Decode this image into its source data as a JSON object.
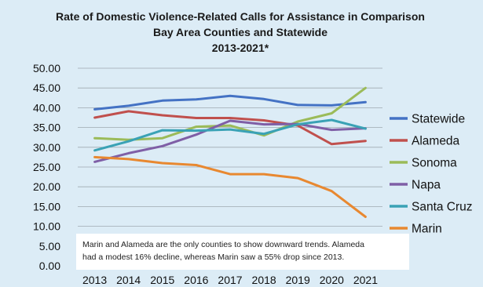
{
  "chart_data": {
    "type": "line",
    "title_lines": [
      "Rate of Domestic Violence-Related Calls for Assistance in Comparison",
      "Bay Area Counties and Statewide",
      "2013-2021*"
    ],
    "x": [
      "2013",
      "2014",
      "2015",
      "2016",
      "2017",
      "2018",
      "2019",
      "2020",
      "2021"
    ],
    "ylim": [
      0,
      50
    ],
    "y_ticks": [
      "0.00",
      "5.00",
      "10.00",
      "15.00",
      "20.00",
      "25.00",
      "30.00",
      "35.00",
      "40.00",
      "45.00",
      "50.00"
    ],
    "grid": true,
    "legend_position": "right",
    "series": [
      {
        "name": "Statewide",
        "color": "#4472c4",
        "values": [
          39.6,
          40.5,
          41.8,
          42.1,
          43.0,
          42.2,
          40.7,
          40.6,
          41.4
        ]
      },
      {
        "name": "Alameda",
        "color": "#c0504d",
        "values": [
          37.5,
          39.1,
          38.1,
          37.4,
          37.4,
          36.8,
          35.5,
          30.8,
          31.6
        ]
      },
      {
        "name": "Sonoma",
        "color": "#9bbb59",
        "values": [
          32.3,
          31.9,
          32.3,
          35.2,
          35.5,
          33.0,
          36.5,
          38.6,
          45.0
        ]
      },
      {
        "name": "Napa",
        "color": "#7f5fa6",
        "values": [
          26.3,
          28.5,
          30.3,
          33.2,
          36.7,
          35.8,
          35.9,
          34.4,
          34.8
        ]
      },
      {
        "name": "Santa Cruz",
        "color": "#3aa2b5",
        "values": [
          29.2,
          31.5,
          34.3,
          34.2,
          34.5,
          33.4,
          35.8,
          36.9,
          34.7
        ]
      },
      {
        "name": "Marin",
        "color": "#e88830",
        "values": [
          27.5,
          27.0,
          26.0,
          25.5,
          23.2,
          23.2,
          22.2,
          18.9,
          12.4
        ]
      }
    ],
    "annotation_lines": [
      "Marin and Alameda are the only counties to show downward trends. Alameda",
      "had a modest 16% decline, whereas Marin saw a 55% drop since 2013."
    ]
  }
}
